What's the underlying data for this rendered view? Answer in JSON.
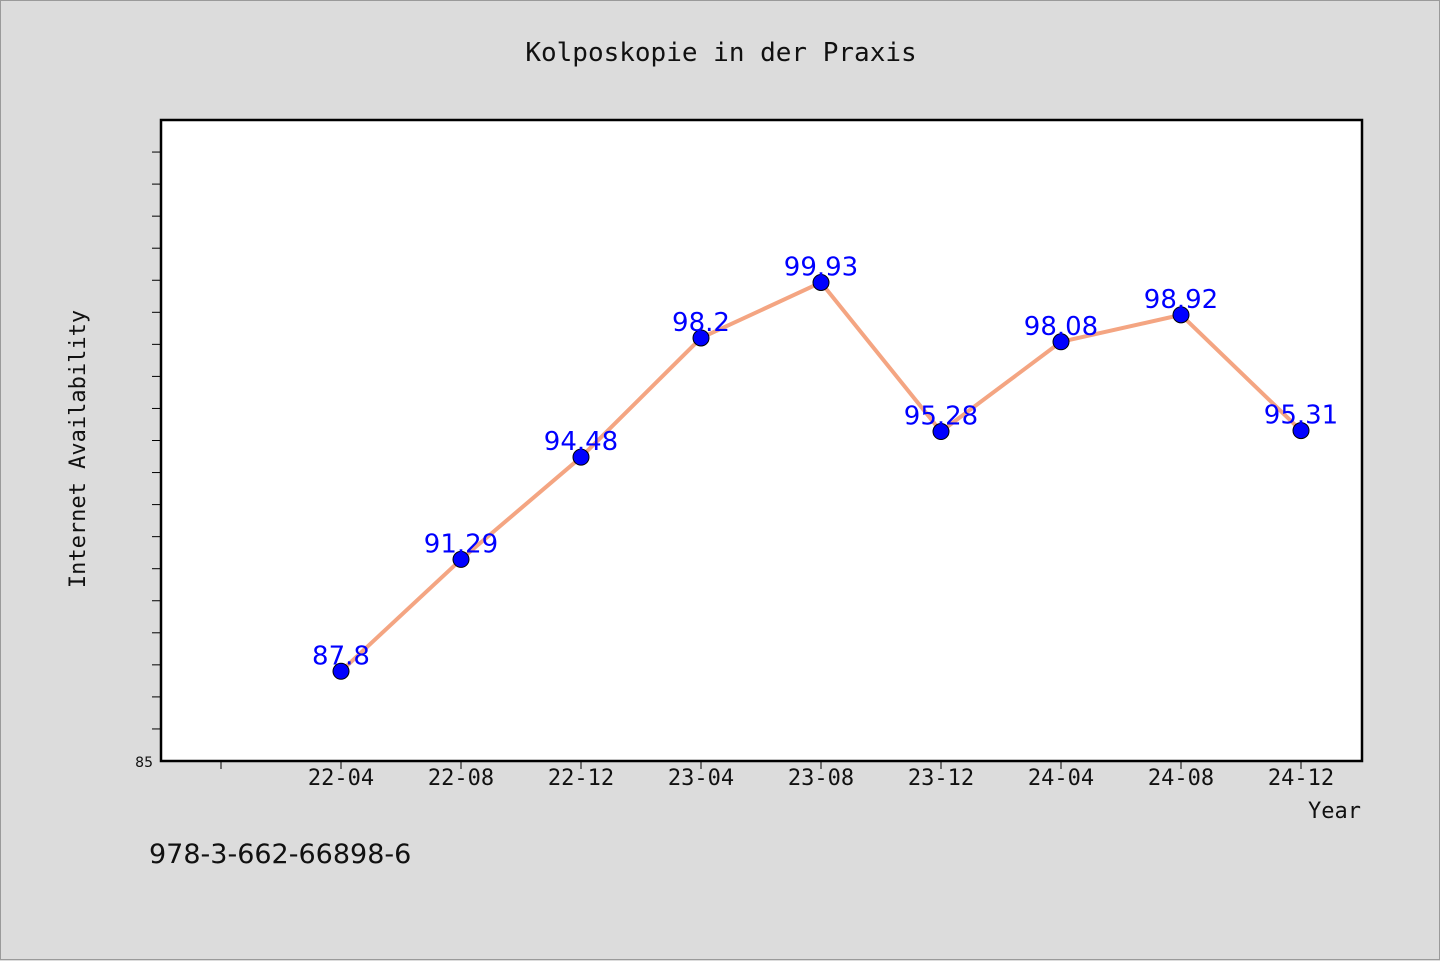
{
  "chart_data": {
    "type": "line",
    "title": "Kolposkopie in der Praxis",
    "xlabel": "Year",
    "ylabel": "Internet Availability",
    "categories": [
      "22-04",
      "22-08",
      "22-12",
      "23-04",
      "23-08",
      "23-12",
      "24-04",
      "24-08",
      "24-12"
    ],
    "series": [
      {
        "values": [
          87.8,
          91.29,
          94.48,
          98.2,
          99.93,
          95.28,
          98.08,
          98.92,
          95.31
        ],
        "labels": [
          "87.8",
          "91.29",
          "94.48",
          "98.2",
          "99.93",
          "95.28",
          "98.08",
          "98.92",
          "95.31"
        ],
        "line_color": "#f4a582",
        "marker_color": "#0000ff",
        "label_color": "#0000ff"
      }
    ],
    "ylim": [
      85,
      105
    ],
    "ytick_labels": [
      "85"
    ],
    "grid": false,
    "legend": "none",
    "footer": "978-3-662-66898-6",
    "background": "#dcdcdc",
    "plot_background": "#ffffff"
  }
}
